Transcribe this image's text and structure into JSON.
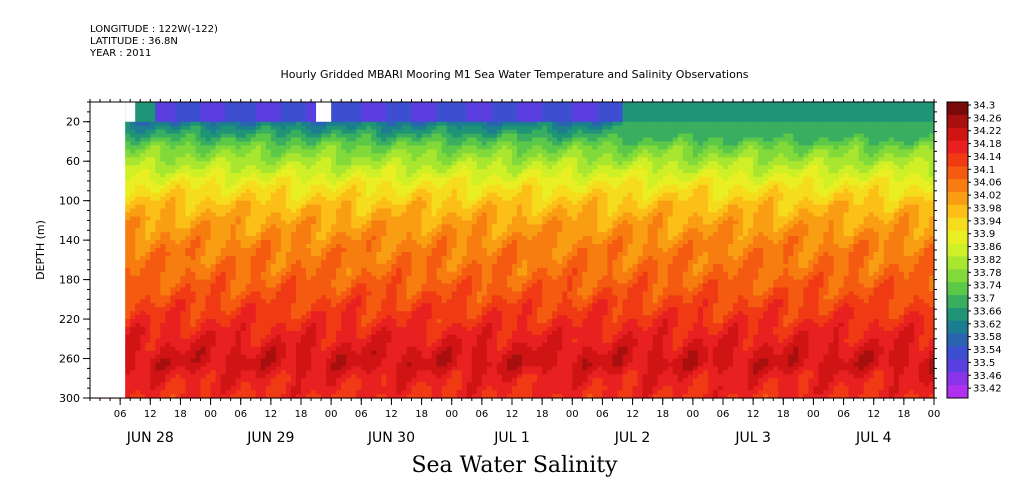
{
  "header": {
    "longitude": "LONGITUDE : 122W(-122)",
    "latitude": "LATITUDE : 36.8N",
    "year": "YEAR : 2011"
  },
  "chart_data": {
    "type": "heatmap",
    "title": "Hourly Gridded MBARI Mooring M1 Sea Water Temperature and Salinity Observations",
    "subtitle": "Sea Water Salinity",
    "ylabel": "DEPTH (m)",
    "xlabel": "",
    "y_reversed": true,
    "ylim": [
      0,
      300
    ],
    "y_ticks": [
      20,
      60,
      100,
      140,
      180,
      220,
      260,
      300
    ],
    "x_start_hour": 0,
    "x_end_hour": 162,
    "x_hour_ticks": [
      {
        "h": 6,
        "label": "06"
      },
      {
        "h": 12,
        "label": "12"
      },
      {
        "h": 18,
        "label": "18"
      },
      {
        "h": 24,
        "label": "00"
      },
      {
        "h": 30,
        "label": "06"
      },
      {
        "h": 36,
        "label": "12"
      },
      {
        "h": 42,
        "label": "18"
      },
      {
        "h": 48,
        "label": "00"
      },
      {
        "h": 54,
        "label": "06"
      },
      {
        "h": 60,
        "label": "12"
      },
      {
        "h": 66,
        "label": "18"
      },
      {
        "h": 72,
        "label": "00"
      },
      {
        "h": 78,
        "label": "06"
      },
      {
        "h": 84,
        "label": "12"
      },
      {
        "h": 90,
        "label": "18"
      },
      {
        "h": 96,
        "label": "00"
      },
      {
        "h": 102,
        "label": "06"
      },
      {
        "h": 108,
        "label": "12"
      },
      {
        "h": 114,
        "label": "18"
      },
      {
        "h": 120,
        "label": "00"
      },
      {
        "h": 126,
        "label": "06"
      },
      {
        "h": 132,
        "label": "12"
      },
      {
        "h": 138,
        "label": "18"
      },
      {
        "h": 144,
        "label": "00"
      },
      {
        "h": 150,
        "label": "06"
      },
      {
        "h": 156,
        "label": "12"
      },
      {
        "h": 162,
        "label": "18"
      },
      {
        "h": 168,
        "label": "00"
      }
    ],
    "x_day_labels": [
      {
        "h": 12,
        "label": "JUN 28"
      },
      {
        "h": 36,
        "label": "JUN 29"
      },
      {
        "h": 60,
        "label": "JUN 30"
      },
      {
        "h": 84,
        "label": "JUL  1"
      },
      {
        "h": 108,
        "label": "JUL  2"
      },
      {
        "h": 132,
        "label": "JUL  3"
      },
      {
        "h": 156,
        "label": "JUL  4"
      }
    ],
    "missing_data": [
      {
        "h0": 0,
        "h1": 7,
        "d0": 0,
        "d1": 300
      },
      {
        "h0": 7,
        "h1": 9,
        "d0": 0,
        "d1": 20
      },
      {
        "h0": 45,
        "h1": 48,
        "d0": 0,
        "d1": 20
      }
    ],
    "colorbar": {
      "levels": [
        34.3,
        34.26,
        34.22,
        34.18,
        34.14,
        34.1,
        34.06,
        34.02,
        33.98,
        33.94,
        33.9,
        33.86,
        33.82,
        33.78,
        33.74,
        33.7,
        33.66,
        33.62,
        33.58,
        33.54,
        33.5,
        33.46,
        33.42
      ],
      "labels": [
        "34.3",
        "34.26",
        "34.22",
        "34.18",
        "34.14",
        "34.1",
        "34.06",
        "34.02",
        "33.98",
        "33.94",
        "33.9",
        "33.86",
        "33.82",
        "33.78",
        "33.74",
        "33.7",
        "33.66",
        "33.62",
        "33.58",
        "33.54",
        "33.5",
        "33.46",
        "33.42"
      ],
      "colors": [
        "#7a0a0a",
        "#a80f0f",
        "#d01414",
        "#e82020",
        "#f03a14",
        "#f45a10",
        "#f77d10",
        "#f99e12",
        "#fbbf18",
        "#f5dc1c",
        "#e9ef22",
        "#cfef26",
        "#a9e630",
        "#82d93a",
        "#5cc848",
        "#3aae60",
        "#1f9476",
        "#1d7d90",
        "#2a63b0",
        "#3e4ed0",
        "#5a3ee0",
        "#8a34ea",
        "#b030f0"
      ]
    },
    "profile": [
      {
        "depth": 10,
        "salinity": 33.54
      },
      {
        "depth": 25,
        "salinity": 33.66
      },
      {
        "depth": 45,
        "salinity": 33.78
      },
      {
        "depth": 65,
        "salinity": 33.86
      },
      {
        "depth": 85,
        "salinity": 33.94
      },
      {
        "depth": 105,
        "salinity": 34.0
      },
      {
        "depth": 125,
        "salinity": 34.04
      },
      {
        "depth": 150,
        "salinity": 34.08
      },
      {
        "depth": 175,
        "salinity": 34.1
      },
      {
        "depth": 200,
        "salinity": 34.14
      },
      {
        "depth": 225,
        "salinity": 34.18
      },
      {
        "depth": 250,
        "salinity": 34.22
      },
      {
        "depth": 265,
        "salinity": 34.24
      },
      {
        "depth": 280,
        "salinity": 34.2
      },
      {
        "depth": 300,
        "salinity": 34.18
      }
    ],
    "surface_fresh_period_hours": [
      7,
      100
    ],
    "surface_salinity_after": 33.66
  }
}
